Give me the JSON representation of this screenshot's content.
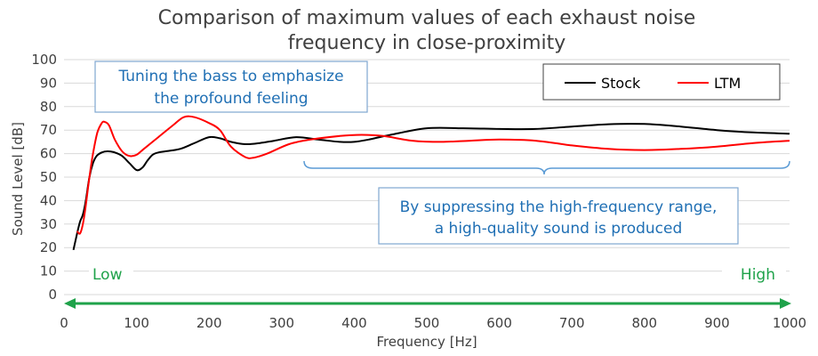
{
  "chart_data": {
    "type": "line",
    "title_lines": [
      "Comparison of maximum values of each exhaust noise",
      "frequency in close-proximity"
    ],
    "xlabel": "Frequency [Hz]",
    "ylabel": "Sound Level [dB]",
    "xlim": [
      0,
      1000
    ],
    "ylim": [
      0,
      100
    ],
    "x_ticks": [
      0,
      100,
      200,
      300,
      400,
      500,
      600,
      700,
      800,
      900,
      1000
    ],
    "y_ticks": [
      0,
      10,
      20,
      30,
      40,
      50,
      60,
      70,
      80,
      90,
      100
    ],
    "grid": "horizontal",
    "legend_position": "top-right",
    "series": [
      {
        "name": "Stock",
        "color": "#000000",
        "points": [
          [
            13,
            19
          ],
          [
            18,
            26
          ],
          [
            22,
            31
          ],
          [
            26,
            34
          ],
          [
            30,
            40
          ],
          [
            35,
            50
          ],
          [
            40,
            56
          ],
          [
            45,
            59
          ],
          [
            52,
            60.5
          ],
          [
            60,
            61
          ],
          [
            70,
            60.5
          ],
          [
            80,
            59
          ],
          [
            90,
            56
          ],
          [
            100,
            53
          ],
          [
            108,
            54
          ],
          [
            115,
            57
          ],
          [
            122,
            59.5
          ],
          [
            130,
            60.5
          ],
          [
            140,
            61
          ],
          [
            160,
            62
          ],
          [
            180,
            64.5
          ],
          [
            200,
            67
          ],
          [
            215,
            66.5
          ],
          [
            230,
            65
          ],
          [
            250,
            64
          ],
          [
            270,
            64.5
          ],
          [
            290,
            65.5
          ],
          [
            320,
            67
          ],
          [
            350,
            66
          ],
          [
            380,
            65
          ],
          [
            400,
            65
          ],
          [
            420,
            66
          ],
          [
            450,
            68
          ],
          [
            500,
            70.8
          ],
          [
            550,
            70.8
          ],
          [
            600,
            70.5
          ],
          [
            650,
            70.5
          ],
          [
            700,
            71.5
          ],
          [
            750,
            72.5
          ],
          [
            800,
            72.6
          ],
          [
            850,
            71.5
          ],
          [
            900,
            70
          ],
          [
            950,
            69
          ],
          [
            1000,
            68.5
          ]
        ]
      },
      {
        "name": "LTM",
        "color": "#ff0000",
        "points": [
          [
            18,
            27
          ],
          [
            22,
            26
          ],
          [
            26,
            30
          ],
          [
            30,
            38
          ],
          [
            35,
            50
          ],
          [
            40,
            60
          ],
          [
            46,
            69
          ],
          [
            52,
            73
          ],
          [
            56,
            73.5
          ],
          [
            62,
            72
          ],
          [
            70,
            66
          ],
          [
            80,
            61
          ],
          [
            90,
            59
          ],
          [
            100,
            59.5
          ],
          [
            110,
            62
          ],
          [
            130,
            67
          ],
          [
            150,
            72
          ],
          [
            165,
            75.5
          ],
          [
            180,
            75.5
          ],
          [
            200,
            73
          ],
          [
            215,
            70
          ],
          [
            230,
            63
          ],
          [
            250,
            58.5
          ],
          [
            262,
            58.3
          ],
          [
            280,
            60
          ],
          [
            310,
            64
          ],
          [
            340,
            66
          ],
          [
            380,
            67.5
          ],
          [
            410,
            68
          ],
          [
            440,
            67.5
          ],
          [
            480,
            65.5
          ],
          [
            520,
            65
          ],
          [
            560,
            65.5
          ],
          [
            600,
            66
          ],
          [
            650,
            65.5
          ],
          [
            700,
            63.5
          ],
          [
            750,
            62
          ],
          [
            800,
            61.5
          ],
          [
            850,
            62
          ],
          [
            900,
            63
          ],
          [
            950,
            64.5
          ],
          [
            1000,
            65.5
          ]
        ]
      }
    ],
    "annotations": {
      "bass_note": [
        "Tuning the bass to emphasize",
        "the profound feeling"
      ],
      "high_note": [
        "By suppressing the high-frequency range,",
        "a high-quality sound is produced"
      ],
      "low_label": "Low",
      "high_label": "High"
    },
    "colors": {
      "note_text": "#1f6fb4",
      "range_arrow": "#1fa24a",
      "brace": "#5b9bd5"
    }
  }
}
